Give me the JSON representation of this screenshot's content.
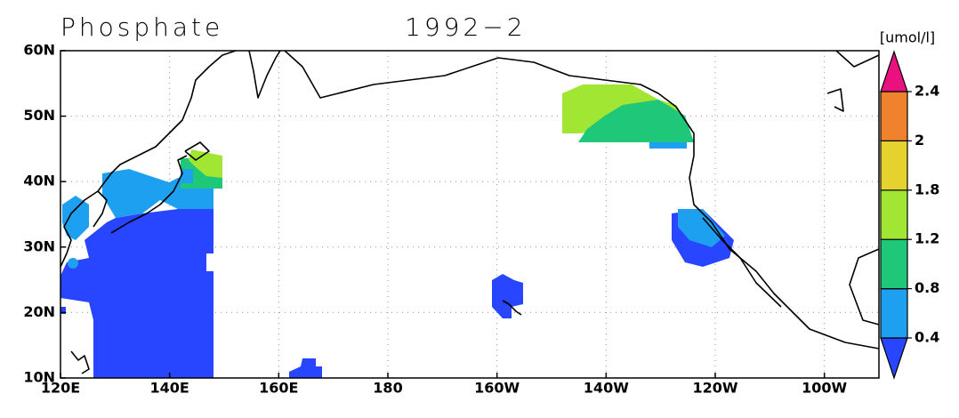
{
  "chart_data": {
    "type": "map",
    "title": "Phosphate",
    "subtitle": "1992−2",
    "units": "[umol/l]",
    "xlim": [
      120,
      270
    ],
    "ylim": [
      10,
      60
    ],
    "xticks": [
      {
        "value": 120,
        "label": "120E"
      },
      {
        "value": 140,
        "label": "140E"
      },
      {
        "value": 160,
        "label": "160E"
      },
      180,
      {
        "value": 200,
        "label": "160W"
      },
      {
        "value": 220,
        "label": "140W"
      },
      {
        "value": 240,
        "label": "120W"
      },
      {
        "value": 260,
        "label": "100W"
      }
    ],
    "yticks": [
      {
        "value": 10,
        "label": "10N"
      },
      {
        "value": 20,
        "label": "20N"
      },
      {
        "value": 30,
        "label": "30N"
      },
      {
        "value": 40,
        "label": "40N"
      },
      {
        "value": 50,
        "label": "50N"
      },
      {
        "value": 60,
        "label": "60N"
      }
    ],
    "grid": true,
    "colorbar": {
      "levels": [
        0.4,
        0.8,
        1.2,
        1.8,
        2,
        2.4
      ],
      "colors": [
        "#2846ff",
        "#1ea0f0",
        "#1ec878",
        "#a0e632",
        "#e6d22e",
        "#f0822d",
        "#e8117f"
      ]
    }
  }
}
